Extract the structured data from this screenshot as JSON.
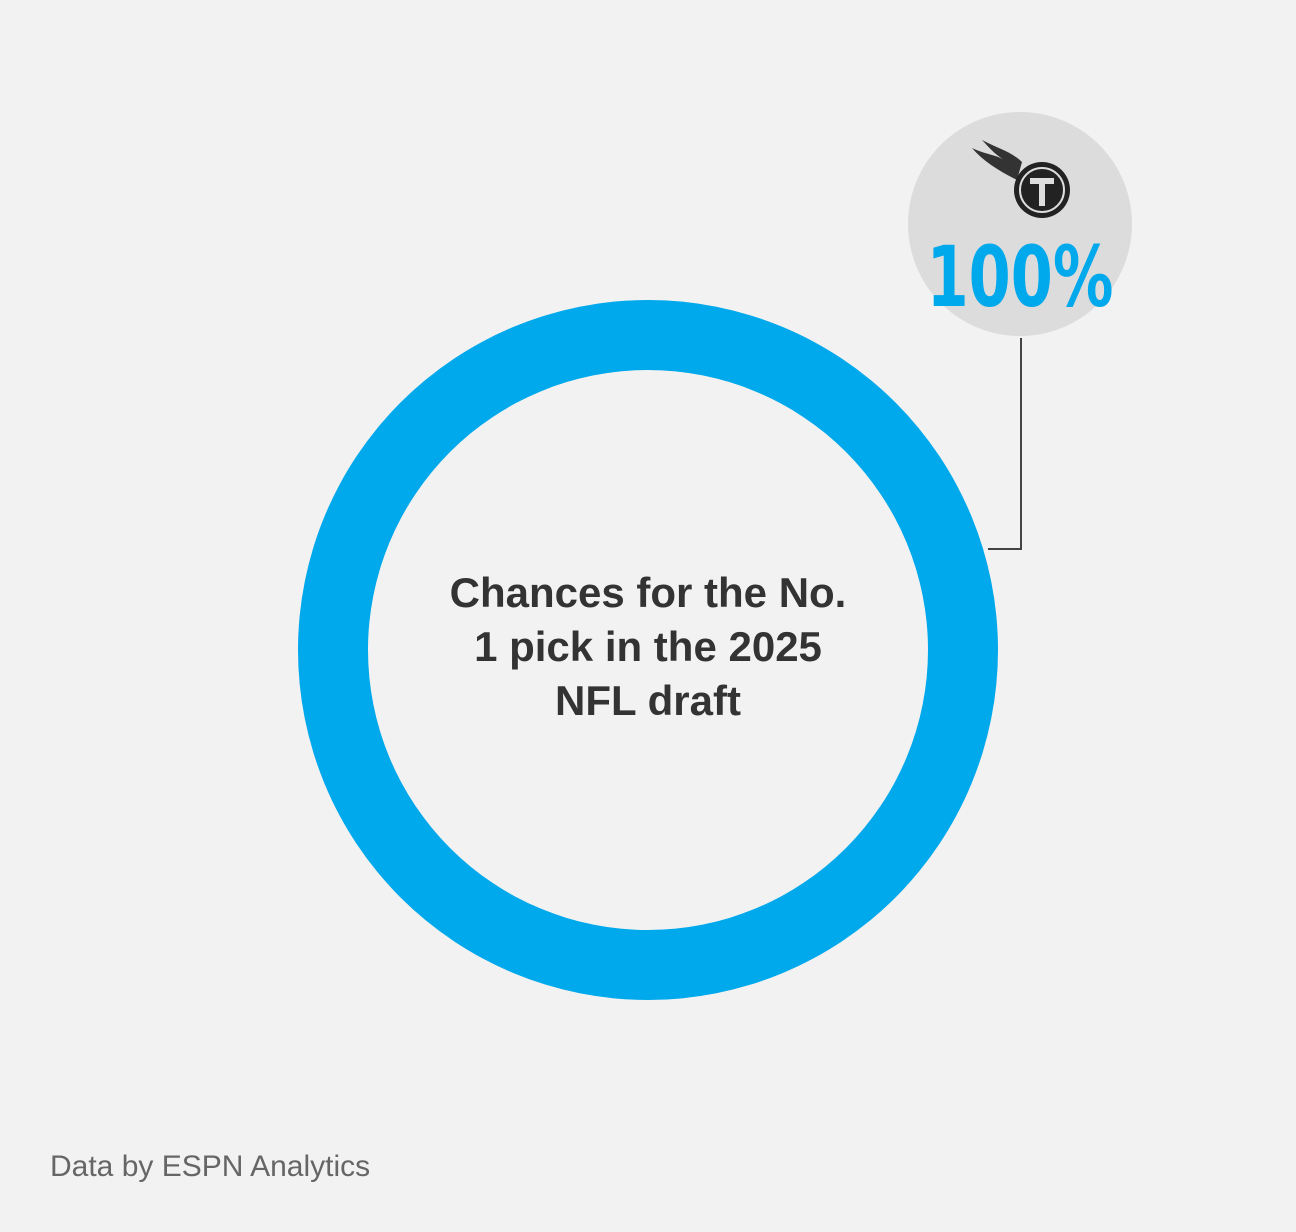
{
  "chart_data": {
    "type": "donut",
    "title": "Chances for the No. 1 pick in the 2025 NFL draft",
    "values": [
      100
    ],
    "value_labels": [
      "100%"
    ],
    "color": "#00a8ec",
    "source": "Data by ESPN Analytics"
  }
}
